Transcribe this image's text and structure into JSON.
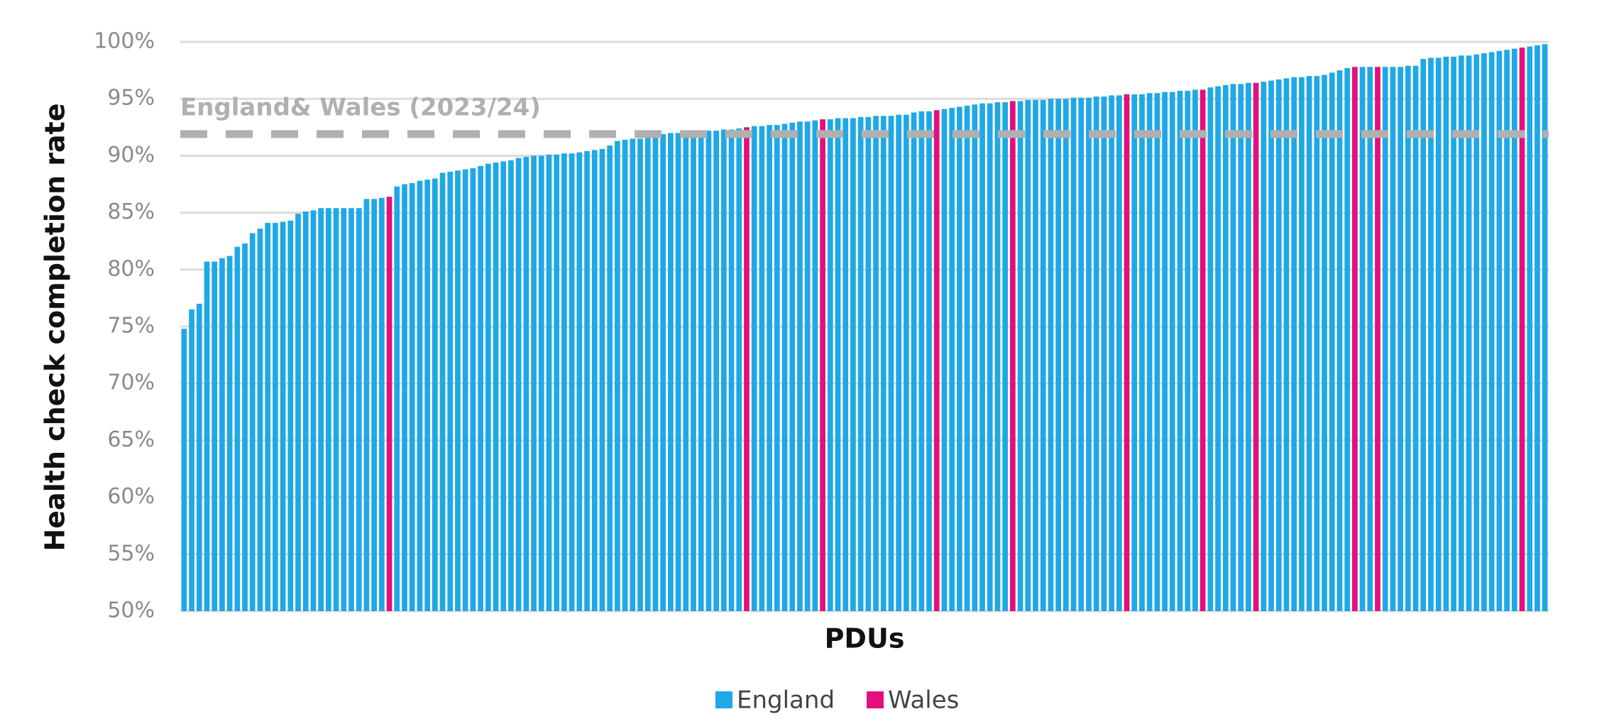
{
  "chart_data": {
    "type": "bar",
    "y_label": "Health check completion rate",
    "x_label": "PDUs",
    "ylim": [
      50,
      100
    ],
    "yticks": [
      {
        "value": 50,
        "label": "50%"
      },
      {
        "value": 55,
        "label": "55%"
      },
      {
        "value": 60,
        "label": "60%"
      },
      {
        "value": 65,
        "label": "65%"
      },
      {
        "value": 70,
        "label": "70%"
      },
      {
        "value": 75,
        "label": "75%"
      },
      {
        "value": 80,
        "label": "80%"
      },
      {
        "value": 85,
        "label": "85%"
      },
      {
        "value": 90,
        "label": "90%"
      },
      {
        "value": 95,
        "label": "95%"
      },
      {
        "value": 100,
        "label": "100%"
      }
    ],
    "grid": true,
    "legend": "bottom",
    "reference_line": {
      "label": "England& Wales (2023/24)",
      "value": 91.9,
      "color": "#b0b0b0"
    },
    "categories": [
      null,
      null,
      null,
      null,
      null,
      null,
      null,
      null,
      null,
      null,
      null,
      null,
      null,
      null,
      null,
      null,
      null,
      null,
      null,
      null,
      null,
      null,
      null,
      null,
      null,
      null,
      null,
      null,
      null,
      null,
      null,
      null,
      null,
      null,
      null,
      null,
      null,
      null,
      null,
      null,
      null,
      null,
      null,
      null,
      null,
      null,
      null,
      null,
      null,
      null,
      null,
      null,
      null,
      null,
      null,
      null,
      null,
      null,
      null,
      null,
      null,
      null,
      null,
      null,
      null,
      null,
      null,
      null,
      null,
      null,
      null,
      null,
      null,
      null,
      null,
      null,
      null,
      null,
      null,
      null,
      null,
      null,
      null,
      null,
      null,
      null,
      null,
      null,
      null,
      null,
      null,
      null,
      null,
      null,
      null,
      null,
      null,
      null,
      null,
      null,
      null,
      null,
      null,
      null,
      null,
      null,
      null,
      null,
      null,
      null,
      null,
      null,
      null,
      null,
      null,
      null,
      null,
      null,
      null,
      null,
      null,
      null,
      null,
      null,
      null,
      null,
      null,
      null,
      null,
      null,
      null,
      null,
      null,
      null,
      null,
      null,
      null,
      null,
      null,
      null,
      null,
      null,
      null,
      null,
      null,
      null,
      null,
      null,
      null,
      null,
      null,
      null,
      null,
      null,
      null,
      null,
      null,
      null,
      null,
      null,
      null,
      null,
      null,
      null,
      null,
      null,
      null,
      null,
      null,
      null,
      null,
      null,
      null,
      null,
      null,
      null,
      null,
      null,
      null,
      null
    ],
    "series": [
      {
        "name": "England",
        "color": "#1fa8e6",
        "values": [
          74.8,
          76.5,
          77.0,
          80.7,
          80.7,
          81.0,
          81.2,
          82.0,
          82.3,
          83.2,
          83.6,
          84.1,
          84.1,
          84.2,
          84.3,
          84.9,
          85.1,
          85.2,
          85.4,
          85.4,
          85.4,
          85.4,
          85.4,
          85.4,
          86.2,
          86.2,
          86.3,
          null,
          87.3,
          87.5,
          87.6,
          87.8,
          87.9,
          88.0,
          88.5,
          88.6,
          88.7,
          88.8,
          88.9,
          89.1,
          89.3,
          89.4,
          89.5,
          89.6,
          89.8,
          89.9,
          90.0,
          90.0,
          90.1,
          90.1,
          90.2,
          90.2,
          90.3,
          90.4,
          90.5,
          90.6,
          90.9,
          91.3,
          91.4,
          91.5,
          91.5,
          91.6,
          91.8,
          91.9,
          92.0,
          92.0,
          92.1,
          92.1,
          92.2,
          92.2,
          92.2,
          92.3,
          92.3,
          92.4,
          null,
          92.6,
          92.6,
          92.7,
          92.7,
          92.8,
          92.9,
          93.0,
          93.0,
          93.1,
          null,
          93.2,
          93.3,
          93.3,
          93.3,
          93.4,
          93.4,
          93.5,
          93.5,
          93.5,
          93.6,
          93.6,
          93.8,
          93.9,
          93.9,
          null,
          94.1,
          94.2,
          94.3,
          94.4,
          94.5,
          94.6,
          94.6,
          94.7,
          94.7,
          null,
          94.8,
          94.9,
          94.9,
          94.9,
          95.0,
          95.0,
          95.0,
          95.1,
          95.1,
          95.1,
          95.2,
          95.2,
          95.3,
          95.3,
          null,
          95.4,
          95.4,
          95.5,
          95.5,
          95.6,
          95.6,
          95.7,
          95.7,
          95.8,
          null,
          96.0,
          96.1,
          96.2,
          96.3,
          96.3,
          96.4,
          null,
          96.5,
          96.6,
          96.7,
          96.8,
          96.9,
          96.9,
          97.0,
          97.0,
          97.1,
          97.3,
          97.5,
          97.7,
          null,
          97.8,
          97.8,
          null,
          97.8,
          97.8,
          97.8,
          97.9,
          97.9,
          98.5,
          98.6,
          98.6,
          98.7,
          98.7,
          98.8,
          98.8,
          98.9,
          99.0,
          99.1,
          99.2,
          99.3,
          99.4,
          null,
          99.6,
          99.7,
          99.8
        ]
      },
      {
        "name": "Wales",
        "color": "#e2107f",
        "values": [
          null,
          null,
          null,
          null,
          null,
          null,
          null,
          null,
          null,
          null,
          null,
          null,
          null,
          null,
          null,
          null,
          null,
          null,
          null,
          null,
          null,
          null,
          null,
          null,
          null,
          null,
          null,
          86.4,
          null,
          null,
          null,
          null,
          null,
          null,
          null,
          null,
          null,
          null,
          null,
          null,
          null,
          null,
          null,
          null,
          null,
          null,
          null,
          null,
          null,
          null,
          null,
          null,
          null,
          null,
          null,
          null,
          null,
          null,
          null,
          null,
          null,
          null,
          null,
          null,
          null,
          null,
          null,
          null,
          null,
          null,
          null,
          null,
          null,
          null,
          92.5,
          null,
          null,
          null,
          null,
          null,
          null,
          null,
          null,
          null,
          93.2,
          null,
          null,
          null,
          null,
          null,
          null,
          null,
          null,
          null,
          null,
          null,
          null,
          null,
          null,
          94.0,
          null,
          null,
          null,
          null,
          null,
          null,
          null,
          null,
          null,
          94.8,
          null,
          null,
          null,
          null,
          null,
          null,
          null,
          null,
          null,
          null,
          null,
          null,
          null,
          null,
          95.4,
          null,
          null,
          null,
          null,
          null,
          null,
          null,
          null,
          null,
          95.8,
          null,
          null,
          null,
          null,
          null,
          null,
          96.4,
          null,
          null,
          null,
          null,
          null,
          null,
          null,
          null,
          null,
          null,
          null,
          null,
          97.8,
          null,
          null,
          97.8,
          null,
          null,
          null,
          null,
          null,
          null,
          null,
          null,
          null,
          null,
          null,
          null,
          null,
          null,
          null,
          null,
          null,
          null,
          99.5,
          null,
          null,
          null
        ]
      }
    ]
  }
}
